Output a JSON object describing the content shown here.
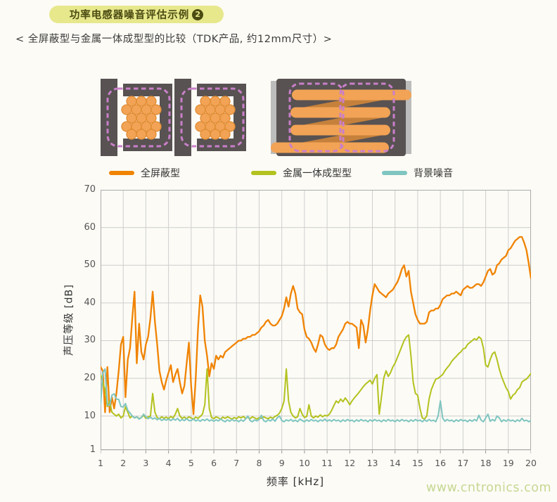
{
  "page": {
    "background": "#fcfbf6"
  },
  "header": {
    "title": "功率电感器噪音评估示例",
    "badge_number": "2",
    "banner_bg": "#e7e88c",
    "banner_text_color": "#4b4b12"
  },
  "subtitle": "< 全屏蔽型与金属一体成型型的比较（TDK产品, 约12mm尺寸）>",
  "legend": {
    "items": [
      {
        "label": "全屏蔽型",
        "color": "#F08300"
      },
      {
        "label": "金属一体成型型",
        "color": "#B3C21E"
      },
      {
        "label": "背景噪音",
        "color": "#7FC5C0"
      }
    ]
  },
  "watermark": {
    "text": "www.cntronics.com",
    "color": "#c6d892"
  },
  "chart_data": {
    "type": "line",
    "title": "",
    "xlabel": "频率 [kHz]",
    "ylabel": "声压等级 [dB]",
    "xlim": [
      1,
      20
    ],
    "ylim": [
      1,
      70
    ],
    "x_ticks": [
      1,
      2,
      3,
      4,
      5,
      6,
      7,
      8,
      9,
      10,
      11,
      12,
      13,
      14,
      15,
      16,
      17,
      18,
      19,
      20
    ],
    "y_ticks": [
      70,
      60,
      50,
      40,
      30,
      20,
      10,
      1
    ],
    "grid": true,
    "legend_position": "top",
    "x_start": 1.0,
    "x_step": 0.1,
    "series": [
      {
        "name": "全屏蔽型",
        "color": "#F08300",
        "values": [
          23,
          22,
          11,
          23,
          11,
          15,
          12,
          16,
          22,
          29,
          31,
          15,
          25,
          28,
          36,
          43,
          24,
          34.5,
          27,
          25,
          29,
          31,
          36,
          43,
          35,
          29,
          22,
          19,
          17,
          19.5,
          21.5,
          23.5,
          19,
          21,
          22.5,
          19,
          16,
          18,
          24,
          29.5,
          18,
          10.5,
          20,
          33,
          42,
          39,
          30,
          26,
          20.5,
          24,
          22.5,
          26,
          25,
          26,
          25.5,
          27,
          27.5,
          28,
          28.5,
          29,
          29.5,
          30,
          30,
          30.5,
          30.5,
          31,
          31,
          31.5,
          31.5,
          32,
          32.5,
          33.5,
          34,
          35,
          35.5,
          34.5,
          34,
          34,
          34.5,
          35.5,
          36.5,
          38.5,
          41.5,
          39,
          42.5,
          44.5,
          42.5,
          38.5,
          37.5,
          37,
          33,
          31,
          30.5,
          29.5,
          28,
          27,
          29,
          31.5,
          31,
          29,
          28,
          27.5,
          28,
          28,
          29,
          31,
          32,
          33,
          34.5,
          35,
          34.5,
          34.5,
          34,
          33.5,
          28,
          35.5,
          34,
          29.5,
          33,
          38,
          42,
          45,
          44,
          43,
          42.5,
          42,
          41.5,
          42.5,
          43,
          43.5,
          44.5,
          45.5,
          47,
          49,
          50,
          47,
          48.5,
          43,
          40,
          37,
          35.5,
          34.5,
          34.5,
          34.5,
          35,
          37.5,
          38,
          38,
          38.5,
          38.5,
          39.5,
          41,
          41.5,
          42,
          42,
          42.5,
          42.5,
          43,
          42.5,
          42,
          43.5,
          44,
          44.5,
          44,
          44,
          44.5,
          45,
          45,
          44.5,
          45.5,
          47,
          48.5,
          49,
          47.5,
          48,
          50,
          50.5,
          51.5,
          52,
          52.5,
          54,
          54.5,
          55.5,
          56.5,
          57,
          57.5,
          57.5,
          56,
          54,
          50.5,
          46.5
        ]
      },
      {
        "name": "金属一体成型型",
        "color": "#B3C21E",
        "values": [
          21,
          19,
          17,
          12.5,
          14,
          11,
          10.5,
          10,
          10.5,
          9.5,
          10,
          12.5,
          11,
          9.5,
          10,
          9.5,
          9.8,
          9.3,
          9.6,
          10.2,
          9.4,
          9.8,
          10,
          16,
          11,
          9.6,
          9.3,
          9.8,
          9.4,
          9.7,
          9.3,
          9.9,
          9.5,
          10.5,
          12,
          10,
          9.4,
          9.7,
          9.3,
          9.8,
          9.5,
          9.2,
          9.7,
          9.4,
          9.9,
          10.5,
          13,
          22.5,
          12,
          9.6,
          9.3,
          9.8,
          9.5,
          9.2,
          9.7,
          9.4,
          9.8,
          9.5,
          9.2,
          9.6,
          9.3,
          9.8,
          9.5,
          9.9,
          9.4,
          9.7,
          9.3,
          9.8,
          9.5,
          9.2,
          9.6,
          9.4,
          9.8,
          9.5,
          9.3,
          9.7,
          9.4,
          9.9,
          10.2,
          10.8,
          12,
          14,
          22.5,
          14,
          11,
          10,
          9.5,
          9.8,
          12,
          10.5,
          9.6,
          9.9,
          13,
          10,
          9.5,
          10,
          9.7,
          10.3,
          9.8,
          10.2,
          10,
          10.5,
          11.5,
          12.8,
          14,
          13.5,
          14.5,
          13.8,
          14.8,
          14,
          13,
          14,
          14.8,
          15.5,
          16.2,
          17,
          17.8,
          18.5,
          19,
          19.5,
          18.5,
          20,
          21,
          10.5,
          15,
          20,
          22,
          20.5,
          21.5,
          23,
          24,
          25.5,
          27,
          28.5,
          30,
          31,
          31.5,
          26,
          19,
          16,
          15.5,
          12,
          9.5,
          9.2,
          10,
          14.5,
          17,
          18.5,
          19.8,
          20,
          20.5,
          21,
          22,
          22.8,
          23.5,
          24.5,
          25.2,
          25.8,
          26.5,
          27,
          27.8,
          28,
          29,
          29.5,
          30,
          30.5,
          30.2,
          31,
          30.5,
          28,
          23.5,
          23,
          25,
          26.5,
          27,
          25,
          22.5,
          20.5,
          19,
          17.5,
          16.5,
          14.5,
          15.5,
          16,
          17,
          17.5,
          19,
          19.5,
          19.8,
          20.5,
          21.3
        ]
      },
      {
        "name": "背景噪音",
        "color": "#7FC5C0",
        "values": [
          13,
          21.5,
          22.5,
          13,
          12.8,
          15.5,
          15.9,
          14.5,
          14.4,
          12.5,
          12.4,
          13.3,
          11.5,
          10.8,
          10,
          9.5,
          9.8,
          9.2,
          9.6,
          10.5,
          9.8,
          9.3,
          9.7,
          9.2,
          9.5,
          9,
          9.4,
          8.8,
          9.2,
          8.9,
          9.2,
          8.8,
          9.3,
          8.9,
          9.4,
          8.7,
          9.1,
          8.8,
          9.3,
          8.8,
          8.8,
          9.2,
          8.7,
          9,
          8.6,
          9.1,
          8.8,
          9.2,
          8.7,
          9,
          8.6,
          9,
          8.7,
          9.2,
          8.8,
          8.5,
          9,
          8.6,
          9.1,
          8.7,
          8.9,
          8.5,
          9,
          8.6,
          9.2,
          10,
          8.8,
          8.5,
          9,
          8.7,
          9.1,
          10.2,
          8.8,
          8.5,
          9,
          8.7,
          9.2,
          8.6,
          9.5,
          10,
          8.8,
          8.5,
          9,
          8.7,
          9.1,
          8.6,
          8.9,
          8.5,
          9.2,
          8.8,
          8.5,
          9,
          8.6,
          9.1,
          8.7,
          8.9,
          8.5,
          9,
          8.7,
          9.2,
          8.6,
          9,
          8.6,
          9.1,
          8.7,
          8.9,
          8.5,
          9,
          8.6,
          9.1,
          8.7,
          8.9,
          8.5,
          9,
          8.6,
          9.1,
          8.7,
          8.9,
          8.5,
          9,
          8.6,
          9.1,
          8.7,
          8.9,
          8.5,
          9,
          8.6,
          9.1,
          8.7,
          8.9,
          8.5,
          9,
          8.6,
          9.1,
          8.7,
          8.9,
          8.5,
          9,
          8.6,
          9.1,
          8.7,
          8.9,
          8.5,
          9,
          8.6,
          9.1,
          8.7,
          8.9,
          8.5,
          10,
          14,
          9.5,
          8.6,
          9.1,
          8.7,
          8.9,
          8.5,
          9,
          8.6,
          9.1,
          8.7,
          8.9,
          8.5,
          9,
          8.6,
          9.1,
          8.7,
          10.2,
          8.9,
          8.5,
          9.5,
          10.5,
          8.6,
          9.1,
          8.7,
          10,
          9.5,
          8.5,
          9,
          8.6,
          9.1,
          8.7,
          8.9,
          8.5,
          9,
          8.6,
          9.4,
          8.7,
          8.9,
          8.5,
          8.8
        ]
      }
    ]
  }
}
